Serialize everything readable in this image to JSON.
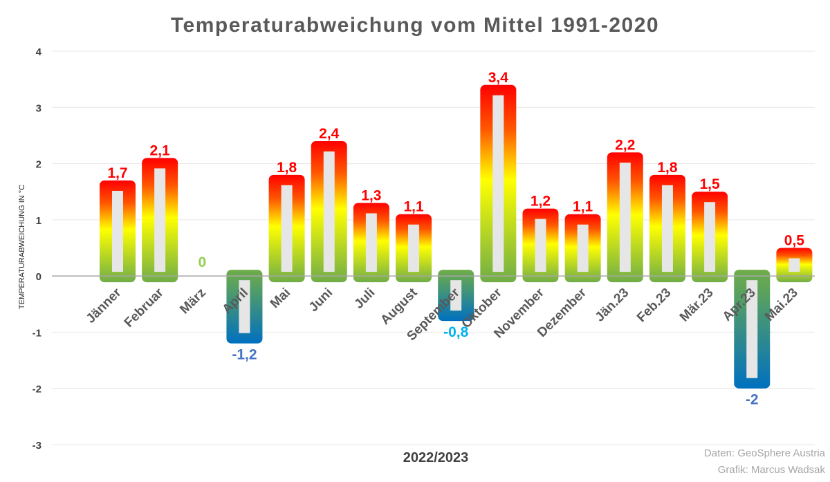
{
  "chart_data": {
    "type": "bar",
    "title": "Temperaturabweichung vom Mittel 1991-2020",
    "xlabel": "2022/2023",
    "ylabel": "TEMPERATURABWEICHUNG IN °C",
    "ylim": [
      -3,
      4
    ],
    "yticks": [
      "-3",
      "-2",
      "-1",
      "0",
      "1",
      "2",
      "3",
      "4"
    ],
    "grid": true,
    "categories": [
      "Jänner",
      "Februar",
      "März",
      "April",
      "Mai",
      "Juni",
      "Juli",
      "August",
      "September",
      "Oktober",
      "November",
      "Dezember",
      "Jän.23",
      "Feb.23",
      "Mär.23",
      "Apr.23",
      "Mai.23"
    ],
    "values": [
      1.7,
      2.1,
      0,
      -1.2,
      1.8,
      2.4,
      1.3,
      1.1,
      -0.8,
      3.4,
      1.2,
      1.1,
      2.2,
      1.8,
      1.5,
      -2,
      0.5
    ],
    "value_labels": [
      "1,7",
      "2,1",
      "0",
      "-1,2",
      "1,8",
      "2,4",
      "1,3",
      "1,1",
      "-0,8",
      "3,4",
      "1,2",
      "1,1",
      "2,2",
      "1,8",
      "1,5",
      "-2",
      "0,5"
    ],
    "colors": {
      "positive_label": "#ff0000",
      "negative_label": "#4472c4",
      "negative_label_light": "#00b0f0",
      "zero_label": "#92d050",
      "bar_inner": "#e6e6e6",
      "grad_red": "#ff0000",
      "grad_yellow": "#ffff00",
      "grad_green": "#70ad47",
      "grad_blue": "#0070c0",
      "axis": "#a6a6a6",
      "grid": "#ececec"
    }
  },
  "credits": {
    "data": "Daten: GeoSphere Austria",
    "graphic": "Grafik: Marcus Wadsak"
  }
}
